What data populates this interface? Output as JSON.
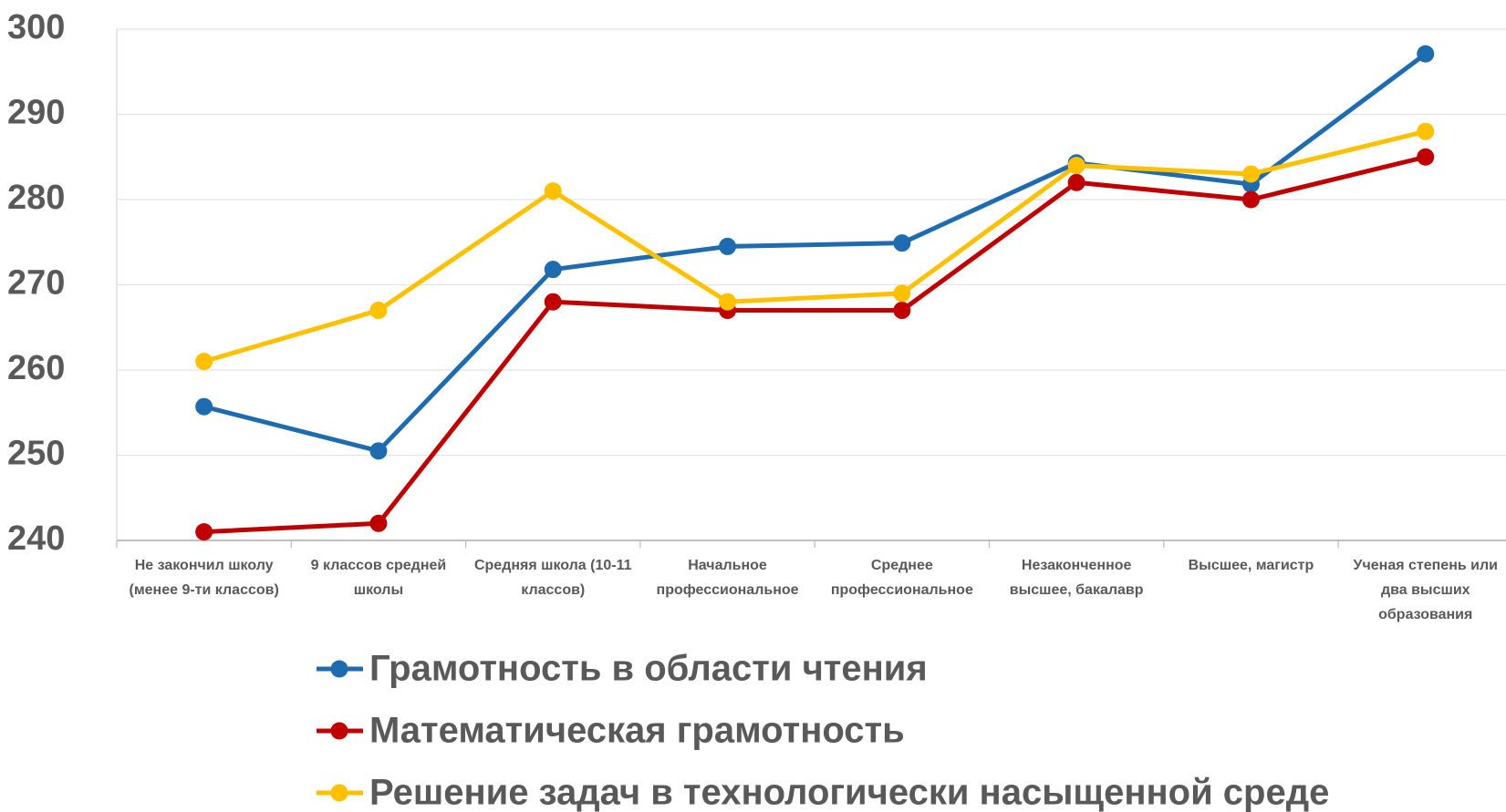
{
  "chart_data": {
    "type": "line",
    "categories": [
      "Не закончил школу (менее 9-ти классов)",
      "9 классов средней школы",
      "Средняя школа (10-11 классов)",
      "Начальное профессиональное",
      "Среднее профессиональное",
      "Незаконченное высшее, бакалавр",
      "Высшее, магистр",
      "Ученая степень или два высших образования"
    ],
    "series": [
      {
        "name": "Грамотность в области чтения",
        "color": "#1f6bb0",
        "values": [
          255.7,
          250.5,
          271.8,
          274.5,
          274.9,
          284.3,
          281.8,
          297.1
        ]
      },
      {
        "name": "Математическая грамотность",
        "color": "#c00000",
        "values": [
          241,
          242,
          268,
          267,
          267,
          282,
          280,
          285
        ]
      },
      {
        "name": "Решение задач в технологически насыщенной среде",
        "color": "#ffc000",
        "values": [
          261,
          267,
          281,
          268,
          269,
          284,
          283,
          288
        ]
      }
    ],
    "ylim": [
      240,
      300
    ],
    "yticks": [
      240,
      250,
      260,
      270,
      280,
      290,
      300
    ],
    "grid": true
  }
}
